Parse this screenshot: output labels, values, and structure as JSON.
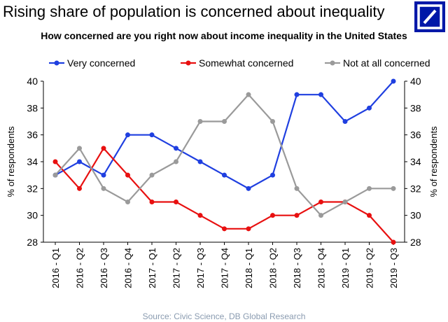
{
  "header": {
    "title": "Rising share of population is concerned about inequality"
  },
  "logo": {
    "color": "#0018a8"
  },
  "source": "Source: Civic Science, DB Global Research",
  "chart_data": {
    "type": "line",
    "title": "How concerned are you right now about income inequality in the United States",
    "ylabel": "% of respondents",
    "ylabel_right": "% of respondents",
    "ylim": [
      28,
      40
    ],
    "yticks": [
      28,
      30,
      32,
      34,
      36,
      38,
      40
    ],
    "legend": "top",
    "grid": false,
    "categories": [
      "2016 - Q1",
      "2016 - Q2",
      "2016 - Q3",
      "2016 - Q4",
      "2017 - Q1",
      "2017 - Q2",
      "2017 - Q3",
      "2017 - Q4",
      "2018 - Q1",
      "2018 - Q2",
      "2018 - Q3",
      "2018 - Q4",
      "2019 - Q1",
      "2019 - Q2",
      "2019 - Q3"
    ],
    "series": [
      {
        "name": "Very concerned",
        "color": "#1f3fe0",
        "values": [
          33,
          34,
          33,
          36,
          36,
          35,
          34,
          33,
          32,
          33,
          39,
          39,
          37,
          38,
          40
        ]
      },
      {
        "name": "Somewhat concerned",
        "color": "#e81010",
        "values": [
          34,
          32,
          35,
          33,
          31,
          31,
          30,
          29,
          29,
          30,
          30,
          31,
          31,
          30,
          28
        ]
      },
      {
        "name": "Not at all concerned",
        "color": "#9a9a9a",
        "values": [
          33,
          35,
          32,
          31,
          33,
          34,
          37,
          37,
          39,
          37,
          32,
          30,
          31,
          32,
          32
        ]
      }
    ]
  }
}
